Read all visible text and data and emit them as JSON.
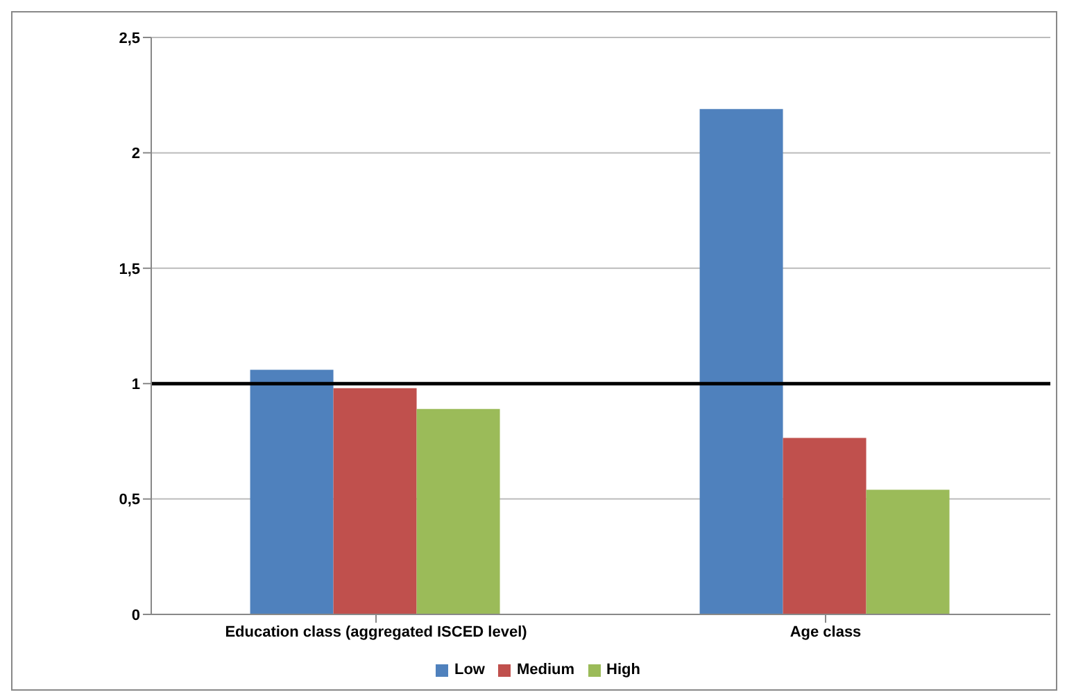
{
  "chart_data": {
    "type": "bar",
    "categories": [
      "Education class (aggregated ISCED level)",
      "Age class"
    ],
    "series": [
      {
        "name": "Low",
        "color": "#4f81bd",
        "values": [
          1.06,
          2.19
        ]
      },
      {
        "name": "Medium",
        "color": "#c0504d",
        "values": [
          0.98,
          0.765
        ]
      },
      {
        "name": "High",
        "color": "#9bbb59",
        "values": [
          0.89,
          0.54
        ]
      }
    ],
    "ylim": [
      0,
      2.5
    ],
    "yticks": [
      0,
      {
        "value": 0.5,
        "label": "0,5"
      },
      1,
      {
        "value": 1.5,
        "label": "1,5"
      },
      2,
      {
        "value": 2.5,
        "label": "2,5"
      }
    ],
    "ref_lines": [
      {
        "axis": "y",
        "value": 1,
        "color": "#000000"
      }
    ],
    "grid": "y",
    "legend": "bottom"
  }
}
